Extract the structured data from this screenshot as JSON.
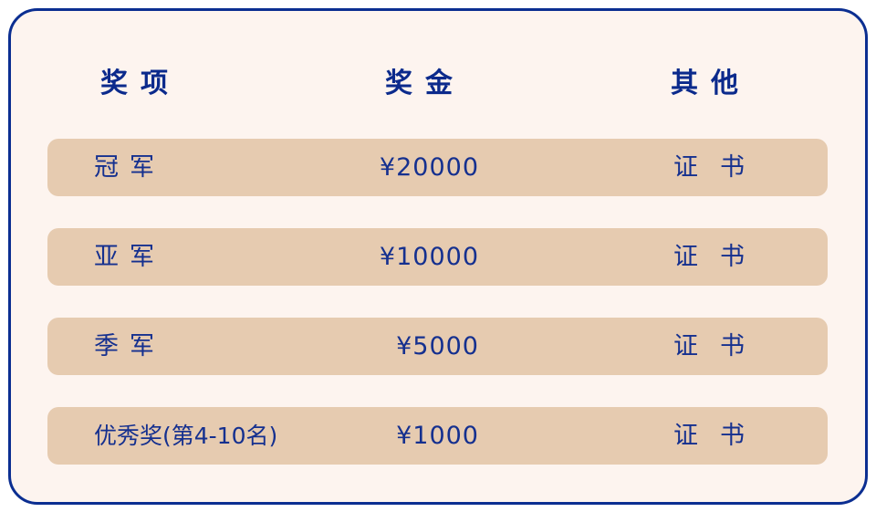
{
  "colors": {
    "border": "#0b2e91",
    "background": "#fdf4ef",
    "row": "#e6cbb0",
    "text": "#15308f"
  },
  "header": {
    "col1": "奖项",
    "col2": "奖金",
    "col3": "其他"
  },
  "rows": [
    {
      "award": "冠军",
      "prize": "¥20000",
      "other": "证书"
    },
    {
      "award": "亚军",
      "prize": "¥10000",
      "other": "证书"
    },
    {
      "award": "季军",
      "prize": "¥5000",
      "other": "证书"
    },
    {
      "award": "优秀奖(第4-10名)",
      "prize": "¥1000",
      "other": "证书"
    }
  ]
}
